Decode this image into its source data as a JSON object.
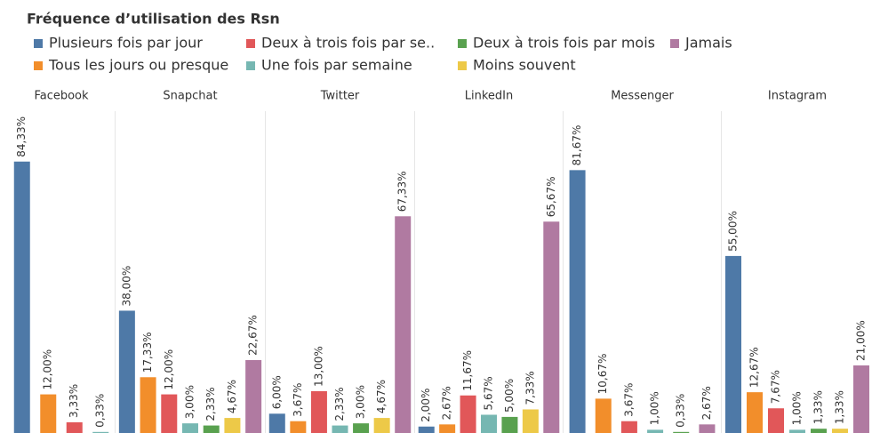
{
  "chart_data": {
    "type": "bar",
    "title": "Fréquence d’utilisation des Rsn",
    "categories": [
      "Facebook",
      "Snapchat",
      "Twitter",
      "LinkedIn",
      "Messenger",
      "Instagram"
    ],
    "ylim": [
      0,
      100
    ],
    "series": [
      {
        "name": "Plusieurs fois par jour",
        "color": "#4e79a7",
        "values": [
          84.33,
          38.0,
          6.0,
          2.0,
          81.67,
          55.0
        ],
        "value_labels": [
          "84,33%",
          "38,00%",
          "6,00%",
          "2,00%",
          "81,67%",
          "55,00%"
        ]
      },
      {
        "name": "Tous les jours ou presque",
        "color": "#f28e2b",
        "values": [
          12.0,
          17.33,
          3.67,
          2.67,
          10.67,
          12.67
        ],
        "value_labels": [
          "12,00%",
          "17,33%",
          "3,67%",
          "2,67%",
          "10,67%",
          "12,67%"
        ]
      },
      {
        "name": "Deux à trois fois par se..",
        "color": "#e15759",
        "values": [
          3.33,
          12.0,
          13.0,
          11.67,
          3.67,
          7.67
        ],
        "value_labels": [
          "3,33%",
          "12,00%",
          "13,00%",
          "11,67%",
          "3,67%",
          "7,67%"
        ]
      },
      {
        "name": "Une fois par semaine",
        "color": "#76b7b2",
        "values": [
          0.33,
          3.0,
          2.33,
          5.67,
          1.0,
          1.0
        ],
        "value_labels": [
          "0,33%",
          "3,00%",
          "2,33%",
          "5,67%",
          "1,00%",
          "1,00%"
        ]
      },
      {
        "name": "Deux à trois fois par mois",
        "color": "#59a14f",
        "values": [
          null,
          2.33,
          3.0,
          5.0,
          0.33,
          1.33
        ],
        "value_labels": [
          null,
          "2,33%",
          "3,00%",
          "5,00%",
          "0,33%",
          "1,33%"
        ]
      },
      {
        "name": "Moins souvent",
        "color": "#edc948",
        "values": [
          null,
          4.67,
          4.67,
          7.33,
          null,
          1.33
        ],
        "value_labels": [
          null,
          "4,67%",
          "4,67%",
          "7,33%",
          null,
          "1,33%"
        ]
      },
      {
        "name": "Jamais",
        "color": "#b07aa1",
        "values": [
          null,
          22.67,
          67.33,
          65.67,
          2.67,
          21.0
        ],
        "value_labels": [
          null,
          "22,67%",
          "67,33%",
          "65,67%",
          "2,67%",
          "21,00%"
        ]
      }
    ]
  }
}
